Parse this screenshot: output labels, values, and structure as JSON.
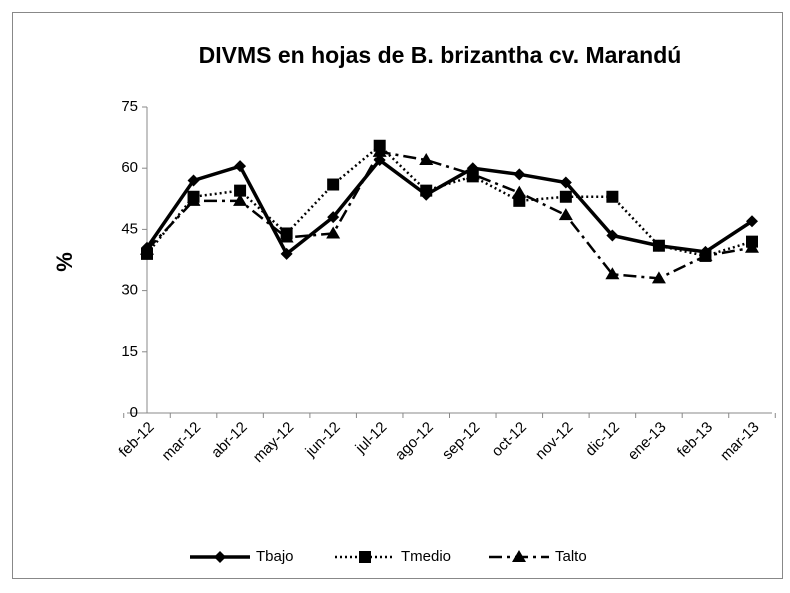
{
  "chart_data": {
    "type": "line",
    "title": "DIVMS en hojas de B. brizantha cv. Marandú",
    "y_label": "%",
    "categories": [
      "feb-12",
      "mar-12",
      "abr-12",
      "may-12",
      "jun-12",
      "jul-12",
      "ago-12",
      "sep-12",
      "oct-12",
      "nov-12",
      "dic-12",
      "ene-13",
      "feb-13",
      "mar-13"
    ],
    "series": [
      {
        "name": "Tbajo",
        "color": "#000000",
        "marker": "diamond",
        "dash": "solid",
        "values": [
          40.5,
          57,
          60.5,
          39,
          48,
          62,
          53.5,
          60,
          58.5,
          56.5,
          43.5,
          41,
          39.5,
          47
        ]
      },
      {
        "name": "Tmedio",
        "color": "#000000",
        "marker": "square",
        "dash": "dotted",
        "values": [
          39,
          53,
          54.5,
          44,
          56,
          65.5,
          54.5,
          58,
          52,
          53,
          53,
          41,
          38.5,
          42
        ]
      },
      {
        "name": "Talto",
        "color": "#000000",
        "marker": "triangle",
        "dash": "dashdot",
        "values": [
          40,
          52,
          52,
          43,
          44,
          64,
          62,
          58.5,
          54,
          48.5,
          34,
          33,
          38.5,
          40.5
        ]
      }
    ],
    "ylim": [
      0,
      75
    ],
    "yticks": [
      0,
      15,
      30,
      45,
      60,
      75
    ],
    "grid": false,
    "legend": "bottom"
  }
}
